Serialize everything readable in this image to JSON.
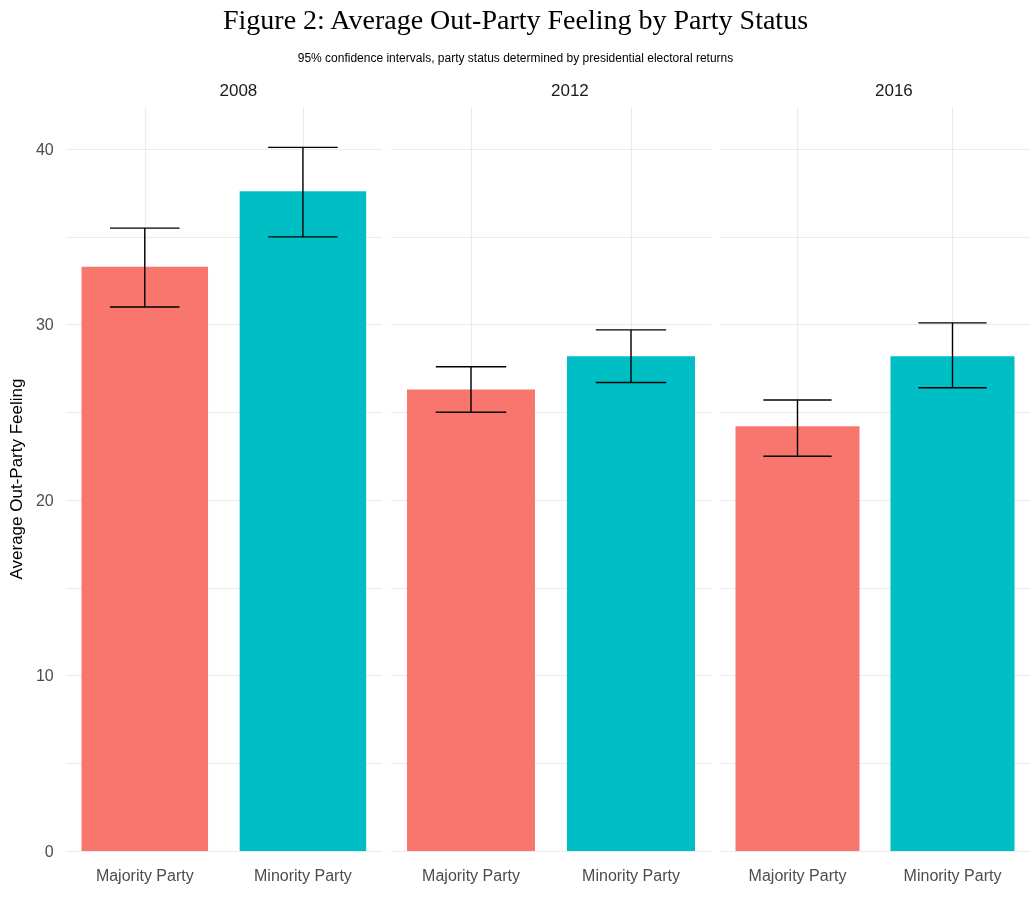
{
  "chart_data": [
    {
      "type": "bar",
      "title": "Figure 2: Average Out-Party Feeling by Party Status",
      "subtitle": "95% confidence intervals, party status determined by presidential electoral returns",
      "annotations": [
        "2008"
      ],
      "ylabel": "Average Out-Party Feeling",
      "categories": [
        "Majority Party",
        "Minority Party"
      ],
      "values": [
        33.3,
        37.6
      ],
      "colors": [
        "#f8766d",
        "#00bfc4"
      ],
      "errors": [
        [
          31.0,
          35.5
        ],
        [
          35.0,
          40.1
        ]
      ],
      "ylim": [
        0,
        42.4
      ],
      "yticks": [
        0,
        {
          "value": 5,
          "label": null
        },
        10,
        {
          "value": 15,
          "label": null
        },
        20,
        {
          "value": 25,
          "label": null
        },
        30,
        {
          "value": 35,
          "label": null
        },
        40
      ],
      "grid": true
    },
    {
      "type": "bar",
      "annotations": [
        "2012"
      ],
      "categories": [
        "Majority Party",
        "Minority Party"
      ],
      "values": [
        26.3,
        28.2
      ],
      "colors": [
        "#f8766d",
        "#00bfc4"
      ],
      "errors": [
        [
          25.0,
          27.6
        ],
        [
          26.7,
          29.7
        ]
      ],
      "ylim": [
        0,
        42.4
      ],
      "yticks": [
        0,
        {
          "value": 5,
          "label": null
        },
        10,
        {
          "value": 15,
          "label": null
        },
        20,
        {
          "value": 25,
          "label": null
        },
        30,
        {
          "value": 35,
          "label": null
        },
        40
      ],
      "grid": true,
      "tick_labels": "x"
    },
    {
      "type": "bar",
      "annotations": [
        "2016"
      ],
      "categories": [
        "Majority Party",
        "Minority Party"
      ],
      "values": [
        24.2,
        28.2
      ],
      "colors": [
        "#f8766d",
        "#00bfc4"
      ],
      "errors": [
        [
          22.5,
          25.7
        ],
        [
          26.4,
          30.1
        ]
      ],
      "ylim": [
        0,
        42.4
      ],
      "yticks": [
        0,
        {
          "value": 5,
          "label": null
        },
        10,
        {
          "value": 15,
          "label": null
        },
        20,
        {
          "value": 25,
          "label": null
        },
        30,
        {
          "value": 35,
          "label": null
        },
        40
      ],
      "grid": true,
      "tick_labels": "x"
    }
  ]
}
